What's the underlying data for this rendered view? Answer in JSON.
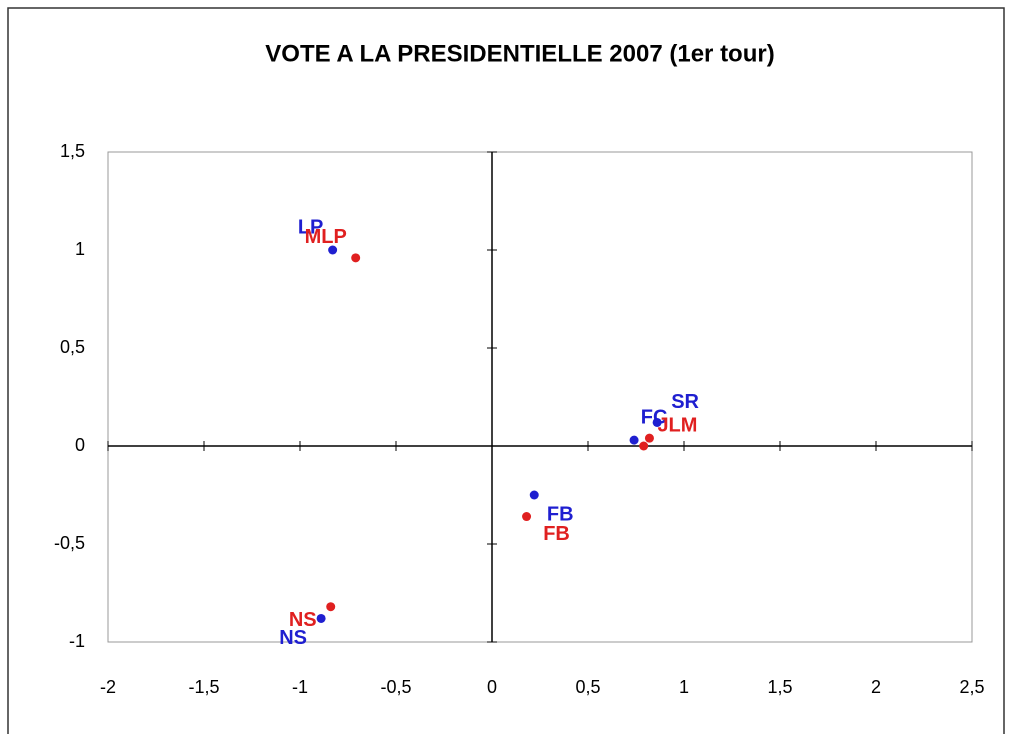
{
  "chart_data": {
    "type": "scatter",
    "title": "VOTE A LA PRESIDENTIELLE 2007 (1er tour)",
    "series": [
      {
        "color": "#1f1fd0",
        "x": [
          -0.83,
          0.22,
          0.74,
          0.86,
          -0.89
        ],
        "values": [
          1.0,
          -0.25,
          0.03,
          0.12,
          -0.88
        ],
        "labels": [
          "LP",
          "FB",
          "FC",
          "SR",
          "NS"
        ]
      },
      {
        "color": "#e02020",
        "x": [
          -0.71,
          0.18,
          0.79,
          0.82,
          -0.84
        ],
        "values": [
          0.96,
          -0.36,
          0.0,
          0.04,
          -0.82
        ],
        "labels": [
          "MLP",
          "FB",
          null,
          "JLM",
          "NS"
        ]
      }
    ],
    "xlim": [
      -2,
      2.5
    ],
    "xticks": [
      -2,
      {
        "value": -1.5,
        "label": "-1,5"
      },
      -1,
      {
        "value": -0.5,
        "label": "-0,5"
      },
      0,
      {
        "value": 0.5,
        "label": "0,5"
      },
      1,
      {
        "value": 1.5,
        "label": "1,5"
      },
      2,
      {
        "value": 2.5,
        "label": "2,5"
      }
    ],
    "ylim": [
      -1,
      1.5
    ],
    "yticks": [
      -1,
      {
        "value": -0.5,
        "label": "-0,5"
      },
      0,
      {
        "value": 0.5,
        "label": "0,5"
      },
      1,
      {
        "value": 1.5,
        "label": "1,5"
      }
    ]
  }
}
